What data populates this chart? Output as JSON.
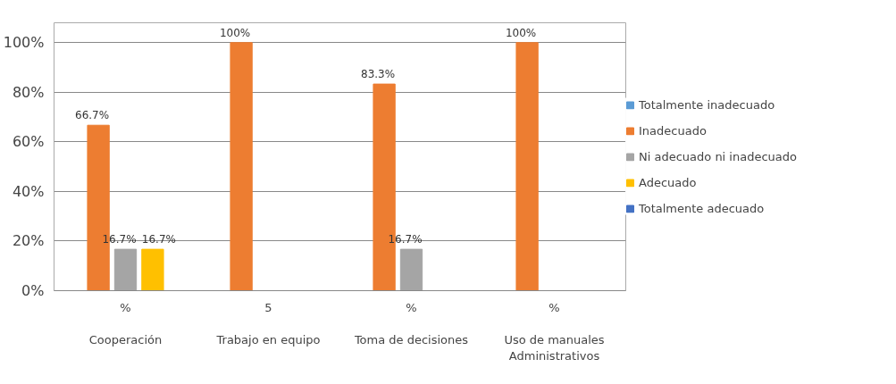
{
  "chart_data": {
    "type": "bar",
    "categories": [
      "%\n\nCooperación",
      "5\n\nTrabajo en equipo",
      "%\n\nToma de decisiones",
      "%\n\nUso de manuales\nAdministrativos"
    ],
    "series": [
      {
        "name": "Totalmente inadecuado",
        "color": "#5b9bd5",
        "values": [
          0,
          0,
          0,
          0
        ],
        "value_labels": [
          null,
          null,
          null,
          null
        ]
      },
      {
        "name": "Inadecuado",
        "color": "#ed7d31",
        "values": [
          66.7,
          100,
          83.3,
          100
        ],
        "value_labels": [
          "66.7%",
          "100%",
          "83.3%",
          "100%"
        ]
      },
      {
        "name": "Ni adecuado ni inadecuado",
        "color": "#a5a5a5",
        "values": [
          16.7,
          0,
          16.7,
          0
        ],
        "value_labels": [
          "16.7%",
          null,
          "16.7%",
          null
        ]
      },
      {
        "name": "Adecuado",
        "color": "#ffc000",
        "values": [
          16.7,
          0,
          0,
          0
        ],
        "value_labels": [
          "16.7%",
          null,
          null,
          null
        ]
      },
      {
        "name": "Totalmente adecuado",
        "color": "#4472c4",
        "values": [
          0,
          0,
          0,
          0
        ],
        "value_labels": [
          null,
          null,
          null,
          null
        ]
      }
    ],
    "ylim": [
      0,
      108
    ],
    "yticks": [
      {
        "value": 0,
        "label": "0%"
      },
      {
        "value": 20,
        "label": "20%"
      },
      {
        "value": 40,
        "label": "40%"
      },
      {
        "value": 60,
        "label": "60%"
      },
      {
        "value": 80,
        "label": "80%"
      },
      {
        "value": 100,
        "label": "100%"
      }
    ],
    "grid": "y",
    "legend": "right"
  }
}
